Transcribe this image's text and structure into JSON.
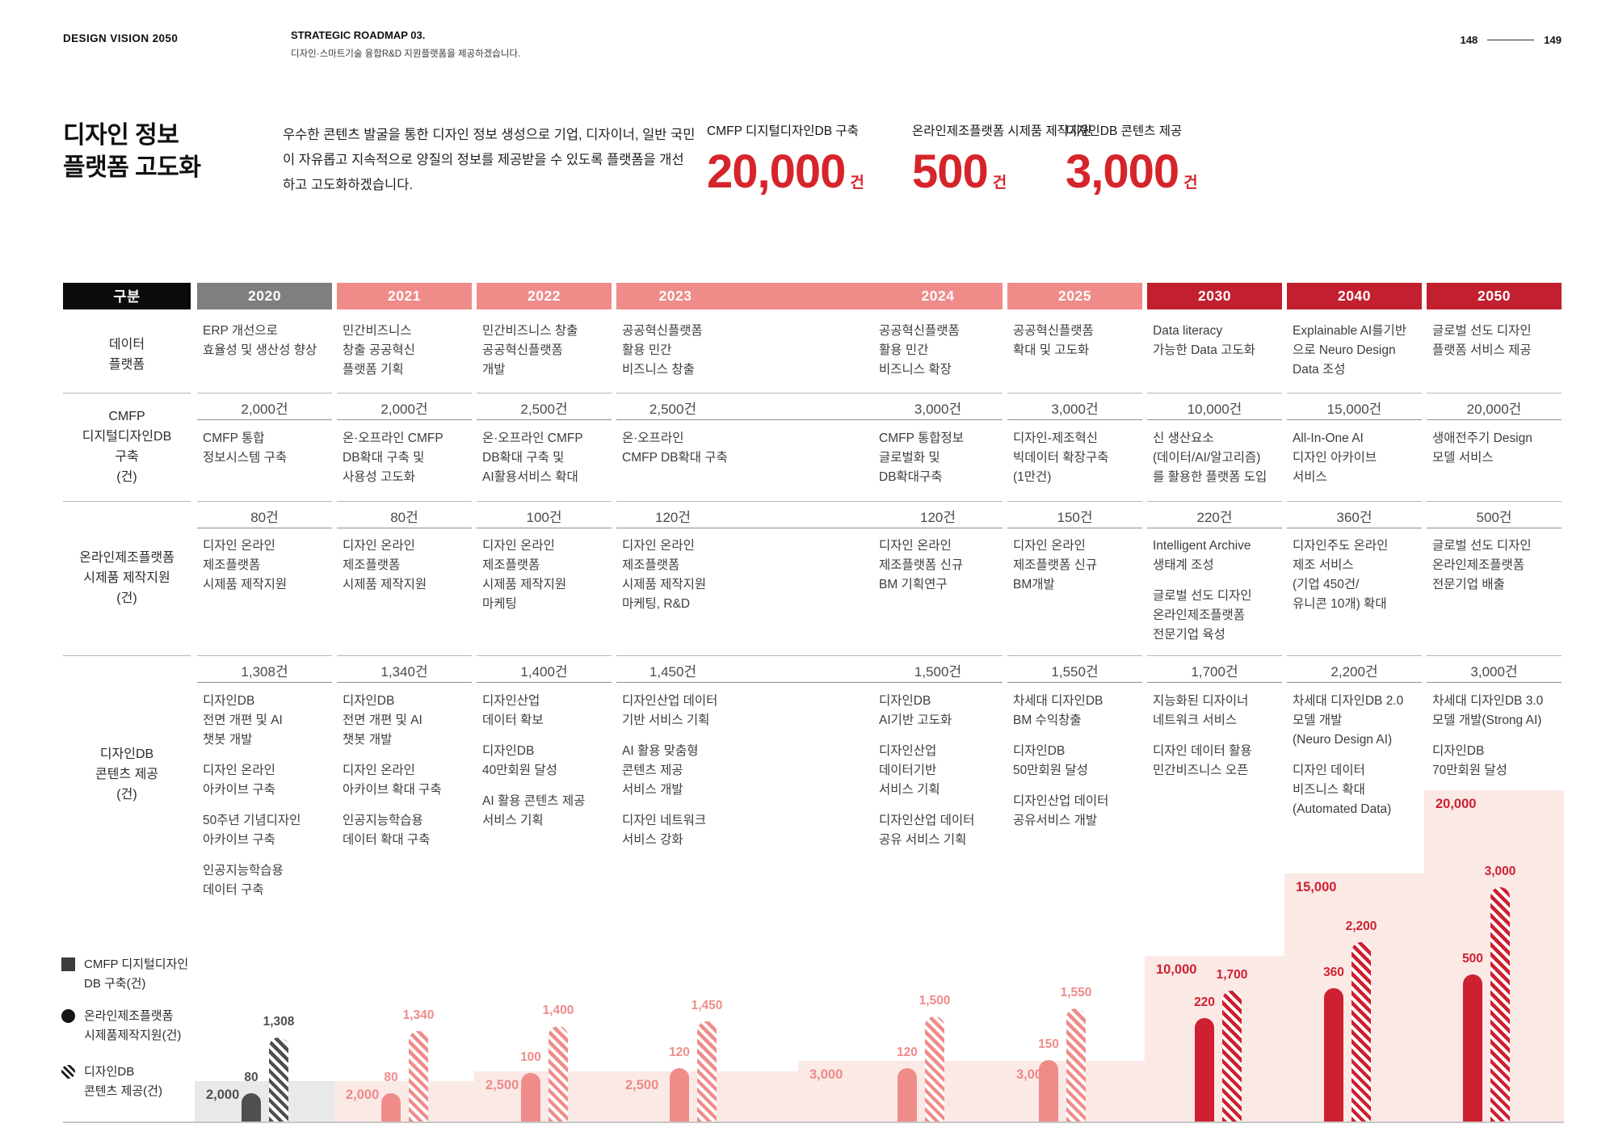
{
  "page_header": {
    "brand": "DESIGN VISION 2050",
    "roadmap_title": "STRATEGIC ROADMAP 03.",
    "roadmap_subtitle": "디자인·스마트기술 융합R&D 지원플랫폼을 제공하겠습니다.",
    "page_left": "148",
    "page_right": "149"
  },
  "intro": {
    "title": "디자인 정보\n플랫폼 고도화",
    "description": "우수한 콘텐츠 발굴을 통한 디자인 정보 생성으로 기업, 디자이너, 일반 국민\n이 자유롭고 지속적으로 양질의 정보를 제공받을 수 있도록 플랫폼을 개선\n하고 고도화하겠습니다."
  },
  "kpis": [
    {
      "label": "CMFP 디지털디자인DB 구축",
      "value": "20,000",
      "unit": "건"
    },
    {
      "label": "온라인제조플랫폼 시제품 제작지원",
      "value": "500",
      "unit": "건"
    },
    {
      "label": "디자인DB 콘텐츠 제공",
      "value": "3,000",
      "unit": "건"
    }
  ],
  "colors": {
    "black": "#0b0b0b",
    "gray_2020": "#7f7f7f",
    "gray_bar": "#4f4f4f",
    "gray_bg": "#e9e9e9",
    "pink": "#ef8c8a",
    "pink_bg": "#fbe9e6",
    "brand_red": "#c3202f",
    "bar_red": "#ce2030",
    "accent_red": "#d6242b"
  },
  "table": {
    "corner_label": "구분",
    "years": [
      "2020",
      "2021",
      "2022",
      "2023",
      "2024",
      "2025",
      "2030",
      "2040",
      "2050"
    ],
    "rows": [
      {
        "label": "데이터\n플랫폼",
        "values": null,
        "cells": [
          [
            "ERP 개선으로\n효율성 및 생산성 향상"
          ],
          [
            "민간비즈니스\n창출 공공혁신\n플랫폼 기획"
          ],
          [
            "민간비즈니스 창출\n공공혁신플랫폼\n개발"
          ],
          [
            "공공혁신플랫폼\n활용 민간\n비즈니스 창출"
          ],
          [
            "공공혁신플랫폼\n활용 민간\n비즈니스 확장"
          ],
          [
            "공공혁신플랫폼\n확대 및 고도화"
          ],
          [
            "Data literacy\n가능한 Data 고도화"
          ],
          [
            "Explainable AI를기반\n으로 Neuro Design\nData 조성"
          ],
          [
            "글로벌 선도 디자인\n플랫폼 서비스 제공"
          ]
        ]
      },
      {
        "label": "CMFP\n디지털디자인DB\n구축\n(건)",
        "values": [
          "2,000건",
          "2,000건",
          "2,500건",
          "2,500건",
          "3,000건",
          "3,000건",
          "10,000건",
          "15,000건",
          "20,000건"
        ],
        "cells": [
          [
            "CMFP 통합\n정보시스템 구축"
          ],
          [
            "온·오프라인 CMFP\nDB확대 구축 및\n사용성 고도화"
          ],
          [
            "온·오프라인 CMFP\nDB확대 구축 및\nAI활용서비스 확대"
          ],
          [
            "온·오프라인\nCMFP DB확대 구축"
          ],
          [
            "CMFP 통합정보\n글로벌화 및\nDB확대구축"
          ],
          [
            "디자인-제조혁신\n빅데이터 확장구축\n(1만건)"
          ],
          [
            "신 생산요소\n(데이터/AI/알고리즘)\n를 활용한 플랫폼 도입"
          ],
          [
            "All-In-One AI\n디자인 아카이브\n서비스"
          ],
          [
            "생애전주기 Design\n모델 서비스"
          ]
        ]
      },
      {
        "label": "온라인제조플랫폼\n시제품 제작지원\n(건)",
        "values": [
          "80건",
          "80건",
          "100건",
          "120건",
          "120건",
          "150건",
          "220건",
          "360건",
          "500건"
        ],
        "cells": [
          [
            "디자인 온라인\n제조플랫폼\n시제품 제작지원"
          ],
          [
            "디자인 온라인\n제조플랫폼\n시제품 제작지원"
          ],
          [
            "디자인 온라인\n제조플랫폼\n시제품 제작지원\n마케팅"
          ],
          [
            "디자인 온라인\n제조플랫폼\n시제품 제작지원\n마케팅, R&D"
          ],
          [
            "디자인 온라인\n제조플랫폼 신규\nBM 기획연구"
          ],
          [
            "디자인 온라인\n제조플랫폼 신규\nBM개발"
          ],
          [
            "Intelligent Archive\n생태계 조성",
            "글로벌 선도 디자인\n온라인제조플랫폼\n전문기업 육성"
          ],
          [
            "디자인주도 온라인\n제조 서비스\n(기업 450건/\n유니콘 10개) 확대"
          ],
          [
            "글로벌 선도 디자인\n온라인제조플랫폼\n전문기업 배출"
          ]
        ]
      },
      {
        "label": "디자인DB\n콘텐츠 제공\n(건)",
        "values": [
          "1,308건",
          "1,340건",
          "1,400건",
          "1,450건",
          "1,500건",
          "1,550건",
          "1,700건",
          "2,200건",
          "3,000건"
        ],
        "cells": [
          [
            "디자인DB\n전면 개편 및 AI\n챗봇 개발",
            "디자인 온라인\n아카이브 구축",
            "50주년 기념디자인\n아카이브 구축",
            "인공지능학습용\n데이터 구축"
          ],
          [
            "디자인DB\n전면 개편 및 AI\n챗봇 개발",
            "디자인 온라인\n아카이브 확대 구축",
            "인공지능학습용\n데이터 확대 구축"
          ],
          [
            "디자인산업\n데이터 확보",
            "디자인DB\n40만회원 달성",
            "AI 활용 콘텐츠 제공\n서비스 기획"
          ],
          [
            "디자인산업 데이터\n기반 서비스 기획",
            "AI 활용 맞춤형\n콘텐츠 제공\n서비스 개발",
            "디자인 네트워크\n서비스 강화"
          ],
          [
            "디자인DB\nAI기반 고도화",
            "디자인산업\n데이터기반\n서비스 기획",
            "디자인산업 데이터\n공유 서비스 기획"
          ],
          [
            "차세대 디자인DB\nBM 수익창출",
            "디자인DB\n50만회원 달성",
            "디자인산업 데이터\n공유서비스 개발"
          ],
          [
            "지능화된 디자이너\n네트워크 서비스",
            "디자인 데이터 활용\n민간비즈니스 오픈"
          ],
          [
            "차세대 디자인DB 2.0\n모델 개발\n(Neuro Design AI)",
            "디자인 데이터\n비즈니스 확대\n(Automated Data)"
          ],
          [
            "차세대 디자인DB 3.0\n모델 개발(Strong AI)",
            "디자인DB\n70만회원 달성"
          ]
        ]
      }
    ]
  },
  "chart_data": {
    "type": "bar",
    "title": "",
    "categories": [
      "2020",
      "2021",
      "2022",
      "2023",
      "2024",
      "2025",
      "2030",
      "2040",
      "2050"
    ],
    "series": [
      {
        "name": "CMFP 디지털디자인 DB 구축(건)",
        "render": "background-step",
        "values": [
          2000,
          2000,
          2500,
          2500,
          3000,
          3000,
          10000,
          15000,
          20000
        ],
        "labels": [
          "2,000",
          "2,000",
          "2,500",
          "2,500",
          "3,000",
          "3,000",
          "10,000",
          "15,000",
          "20,000"
        ]
      },
      {
        "name": "온라인제조플랫폼 시제품제작지원(건)",
        "render": "solid-bar",
        "values": [
          80,
          80,
          100,
          120,
          120,
          150,
          220,
          360,
          500
        ],
        "labels": [
          "80",
          "80",
          "100",
          "120",
          "120",
          "150",
          "220",
          "360",
          "500"
        ]
      },
      {
        "name": "디자인DB 콘텐츠 제공(건)",
        "render": "hatched-bar",
        "values": [
          1308,
          1340,
          1400,
          1450,
          1500,
          1550,
          1700,
          2200,
          3000
        ],
        "labels": [
          "1,308",
          "1,340",
          "1,400",
          "1,450",
          "1,500",
          "1,550",
          "1,700",
          "2,200",
          "3,000"
        ]
      }
    ],
    "grid": false,
    "legend_position": "bottom-left"
  },
  "legend": [
    {
      "icon": "square",
      "label": "CMFP 디지털디자인\nDB 구축(건)"
    },
    {
      "icon": "circle",
      "label": "온라인제조플랫폼\n시제품제작지원(건)"
    },
    {
      "icon": "hatched-circle",
      "label": "디자인DB\n콘텐츠 제공(건)"
    }
  ]
}
